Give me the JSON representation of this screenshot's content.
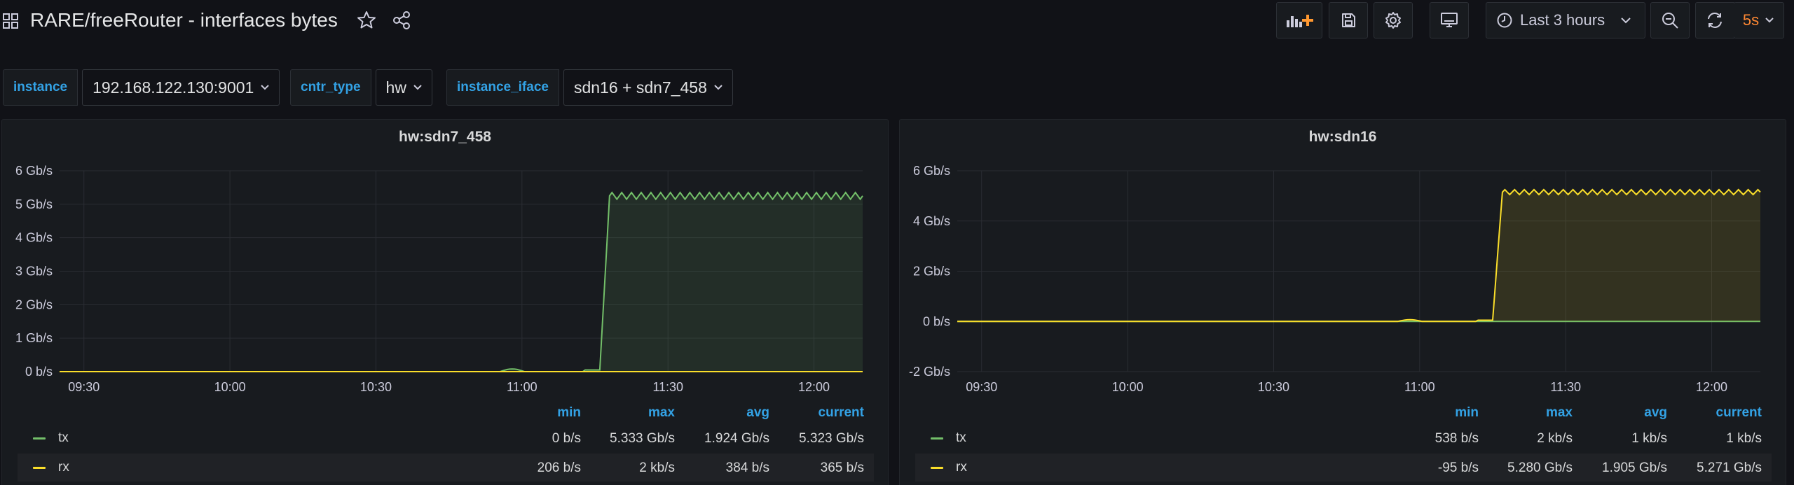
{
  "header": {
    "title": "RARE/freeRouter - interfaces bytes",
    "time_range": "Last 3 hours",
    "refresh_interval": "5s"
  },
  "variables": [
    {
      "label": "instance",
      "value": "192.168.122.130:9001"
    },
    {
      "label": "cntr_type",
      "value": "hw"
    },
    {
      "label": "instance_iface",
      "value": "sdn16 + sdn7_458"
    }
  ],
  "colors": {
    "tx": "#73bf69",
    "rx": "#fade2a",
    "accent": "#ff8833",
    "legend_header": "#33a2e5"
  },
  "legend_columns": [
    "min",
    "max",
    "avg",
    "current"
  ],
  "panels": [
    {
      "title": "hw:sdn7_458",
      "legend": [
        {
          "name": "tx",
          "min": "0 b/s",
          "max": "5.333 Gb/s",
          "avg": "1.924 Gb/s",
          "current": "5.323 Gb/s"
        },
        {
          "name": "rx",
          "min": "206 b/s",
          "max": "2 kb/s",
          "avg": "384 b/s",
          "current": "365 b/s"
        }
      ]
    },
    {
      "title": "hw:sdn16",
      "legend": [
        {
          "name": "tx",
          "min": "538 b/s",
          "max": "2 kb/s",
          "avg": "1 kb/s",
          "current": "1 kb/s"
        },
        {
          "name": "rx",
          "min": "-95 b/s",
          "max": "5.280 Gb/s",
          "avg": "1.905 Gb/s",
          "current": "5.271 Gb/s"
        }
      ]
    }
  ],
  "chart_data": [
    {
      "type": "area",
      "title": "hw:sdn7_458",
      "x_ticks": [
        "09:30",
        "10:00",
        "10:30",
        "11:00",
        "11:30",
        "12:00"
      ],
      "y_ticks": [
        "0 b/s",
        "1 Gb/s",
        "2 Gb/s",
        "3 Gb/s",
        "4 Gb/s",
        "5 Gb/s",
        "6 Gb/s"
      ],
      "ylim_gbps": [
        0,
        6
      ],
      "x_minutes_range": [
        "09:25",
        "12:10"
      ],
      "legend_placement": "bottom",
      "grid": true,
      "series": [
        {
          "name": "tx",
          "ramp_start": "11:16",
          "ramp_end": "11:18",
          "plateau_gbps": 5.25,
          "oscillation_gbps": 0.2,
          "max_gbps": 5.333,
          "current_gbps": 5.323,
          "bump_at": "10:58",
          "bump_gbps": 0.08
        },
        {
          "name": "rx",
          "value_gbps": 0
        }
      ]
    },
    {
      "type": "area",
      "title": "hw:sdn16",
      "x_ticks": [
        "09:30",
        "10:00",
        "10:30",
        "11:00",
        "11:30",
        "12:00"
      ],
      "y_ticks": [
        "-2 Gb/s",
        "0 b/s",
        "2 Gb/s",
        "4 Gb/s",
        "6 Gb/s"
      ],
      "ylim_gbps": [
        -2,
        6
      ],
      "x_minutes_range": [
        "09:25",
        "12:10"
      ],
      "legend_placement": "bottom",
      "grid": true,
      "series": [
        {
          "name": "tx",
          "value_gbps": 0
        },
        {
          "name": "rx",
          "ramp_start": "11:15",
          "ramp_end": "11:17",
          "plateau_gbps": 5.15,
          "oscillation_gbps": 0.2,
          "max_gbps": 5.28,
          "current_gbps": 5.271,
          "bump_at": "10:58",
          "bump_gbps": 0.07
        }
      ]
    }
  ]
}
